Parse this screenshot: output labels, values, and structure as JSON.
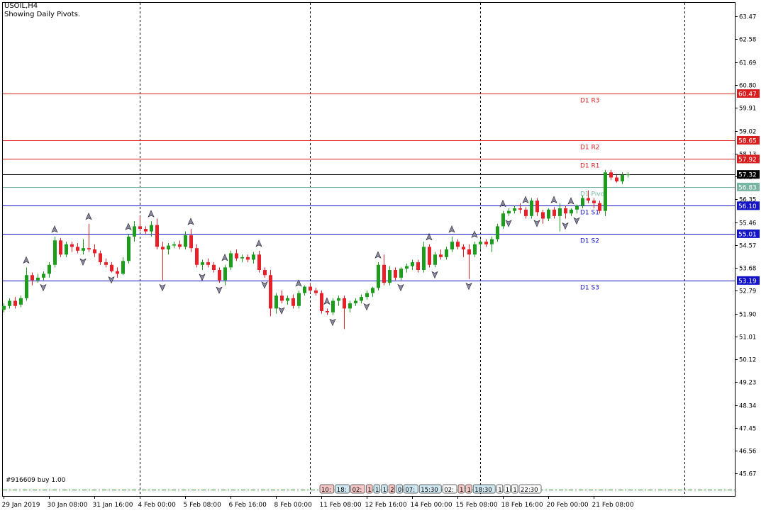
{
  "header": {
    "symbol_timeframe": "USOIL,H4",
    "indicator_note": "Showing Daily Pivots."
  },
  "order_note": "#916609 buy 1.00",
  "colors": {
    "bull": "#1e9c1e",
    "bear": "#e8202a",
    "resistance": "#d81e1e",
    "support": "#1515c8",
    "pivot": "#78b4a4",
    "current": "#000000",
    "grid": "#000000"
  },
  "chart_data": {
    "type": "candlestick",
    "title": "USOIL,H4",
    "subtitle": "Showing Daily Pivots.",
    "ylim": [
      44.8,
      64.0
    ],
    "y_ticks": [
      "63.47",
      "62.58",
      "61.69",
      "60.80",
      "59.91",
      "59.02",
      "58.13",
      "57.24",
      "56.35",
      "55.46",
      "54.57",
      "53.68",
      "52.79",
      "51.90",
      "51.01",
      "50.12",
      "49.23",
      "48.34",
      "47.45",
      "46.56",
      "45.67"
    ],
    "x_ticks": [
      "29 Jan 2019",
      "30 Jan 08:00",
      "31 Jan 16:00",
      "4 Feb 00:00",
      "5 Feb 08:00",
      "6 Feb 16:00",
      "8 Feb 00:00",
      "11 Feb 08:00",
      "12 Feb 16:00",
      "14 Feb 00:00",
      "15 Feb 08:00",
      "18 Feb 16:00",
      "20 Feb 00:00",
      "21 Feb 08:00"
    ],
    "x_tick_bar_index": [
      0,
      8,
      16,
      24,
      32,
      40,
      48,
      56,
      64,
      72,
      80,
      88,
      96,
      104
    ],
    "period_separators_bar_index": [
      24,
      54,
      84,
      120
    ],
    "pivot_levels": [
      {
        "name": "D1 R3",
        "value": 60.47,
        "label": "60.47",
        "kind": "resistance"
      },
      {
        "name": "D1 R2",
        "value": 58.65,
        "label": "58.65",
        "kind": "resistance"
      },
      {
        "name": "D1 R1",
        "value": 57.92,
        "label": "57.92",
        "kind": "resistance"
      },
      {
        "name": "D1 Pivot",
        "value": 56.83,
        "label": "56.83",
        "kind": "pivot"
      },
      {
        "name": "D1 S1",
        "value": 56.1,
        "label": "56.10",
        "kind": "support"
      },
      {
        "name": "D1 S2",
        "value": 55.01,
        "label": "55.01",
        "kind": "support"
      },
      {
        "name": "D1 S3",
        "value": 53.19,
        "label": "53.19",
        "kind": "support"
      }
    ],
    "current_price": {
      "value": 57.32,
      "label": "57.32"
    },
    "candles": [
      [
        52.05,
        52.3,
        51.95,
        52.2
      ],
      [
        52.2,
        52.5,
        52.1,
        52.4
      ],
      [
        52.4,
        52.55,
        52.1,
        52.2
      ],
      [
        52.25,
        52.6,
        52.15,
        52.5
      ],
      [
        52.5,
        53.7,
        52.4,
        53.4
      ],
      [
        53.4,
        53.5,
        53.0,
        53.2
      ],
      [
        53.2,
        53.45,
        53.1,
        53.3
      ],
      [
        53.3,
        53.55,
        53.2,
        53.45
      ],
      [
        53.45,
        53.9,
        53.3,
        53.8
      ],
      [
        53.8,
        54.9,
        53.7,
        54.75
      ],
      [
        54.75,
        54.85,
        54.1,
        54.2
      ],
      [
        54.2,
        54.7,
        54.1,
        54.6
      ],
      [
        54.6,
        54.7,
        54.3,
        54.5
      ],
      [
        54.5,
        54.65,
        54.25,
        54.35
      ],
      [
        54.35,
        54.8,
        54.2,
        54.45
      ],
      [
        54.45,
        55.4,
        54.3,
        54.4
      ],
      [
        54.4,
        54.6,
        54.1,
        54.25
      ],
      [
        54.25,
        54.35,
        53.8,
        53.9
      ],
      [
        53.9,
        54.05,
        53.7,
        53.8
      ],
      [
        53.8,
        53.9,
        53.5,
        53.55
      ],
      [
        53.55,
        53.7,
        53.3,
        53.45
      ],
      [
        53.45,
        54.1,
        53.4,
        53.95
      ],
      [
        53.95,
        55.0,
        53.85,
        54.9
      ],
      [
        54.9,
        55.5,
        54.7,
        55.3
      ],
      [
        55.3,
        55.7,
        55.1,
        55.2
      ],
      [
        55.2,
        55.3,
        55.0,
        55.1
      ],
      [
        55.1,
        55.5,
        54.9,
        55.35
      ],
      [
        55.35,
        55.6,
        54.4,
        54.5
      ],
      [
        54.5,
        54.7,
        53.2,
        54.4
      ],
      [
        54.4,
        54.65,
        54.2,
        54.55
      ],
      [
        54.55,
        54.7,
        54.45,
        54.6
      ],
      [
        54.6,
        54.75,
        54.4,
        54.5
      ],
      [
        54.5,
        55.1,
        54.4,
        54.95
      ],
      [
        54.95,
        55.2,
        54.3,
        54.45
      ],
      [
        54.45,
        54.6,
        53.7,
        53.8
      ],
      [
        53.8,
        54.0,
        53.6,
        53.9
      ],
      [
        53.9,
        54.05,
        53.7,
        53.8
      ],
      [
        53.8,
        53.9,
        53.5,
        53.6
      ],
      [
        53.6,
        53.7,
        53.1,
        53.2
      ],
      [
        53.2,
        53.8,
        53.0,
        53.7
      ],
      [
        53.7,
        54.35,
        53.6,
        54.25
      ],
      [
        54.25,
        54.4,
        53.95,
        54.05
      ],
      [
        54.05,
        54.2,
        53.9,
        54.1
      ],
      [
        54.1,
        54.2,
        53.9,
        54.0
      ],
      [
        54.0,
        54.3,
        53.85,
        54.2
      ],
      [
        54.2,
        54.35,
        53.5,
        53.6
      ],
      [
        53.6,
        53.7,
        53.3,
        53.4
      ],
      [
        53.4,
        53.6,
        51.8,
        52.1
      ],
      [
        52.1,
        52.7,
        51.9,
        52.6
      ],
      [
        52.6,
        52.8,
        52.3,
        52.4
      ],
      [
        52.4,
        52.6,
        52.25,
        52.5
      ],
      [
        52.5,
        52.65,
        52.1,
        52.2
      ],
      [
        52.2,
        52.8,
        52.1,
        52.7
      ],
      [
        52.7,
        53.0,
        52.6,
        52.95
      ],
      [
        52.95,
        53.1,
        52.7,
        52.8
      ],
      [
        52.8,
        52.9,
        52.6,
        52.7
      ],
      [
        52.7,
        52.8,
        51.9,
        52.0
      ],
      [
        52.0,
        52.1,
        51.85,
        51.95
      ],
      [
        51.95,
        52.5,
        51.85,
        52.4
      ],
      [
        52.4,
        52.6,
        52.2,
        52.5
      ],
      [
        52.5,
        52.6,
        51.3,
        52.1
      ],
      [
        52.1,
        52.4,
        51.95,
        52.3
      ],
      [
        52.3,
        52.5,
        52.2,
        52.4
      ],
      [
        52.4,
        52.65,
        52.3,
        52.55
      ],
      [
        52.55,
        52.8,
        52.45,
        52.7
      ],
      [
        52.7,
        52.95,
        52.55,
        52.9
      ],
      [
        52.9,
        53.9,
        52.8,
        53.8
      ],
      [
        53.8,
        54.2,
        53.0,
        53.1
      ],
      [
        53.1,
        53.75,
        53.0,
        53.6
      ],
      [
        53.6,
        53.7,
        53.2,
        53.3
      ],
      [
        53.3,
        53.7,
        53.2,
        53.65
      ],
      [
        53.65,
        53.85,
        53.5,
        53.75
      ],
      [
        53.75,
        54.0,
        53.6,
        53.9
      ],
      [
        53.9,
        54.0,
        53.5,
        53.6
      ],
      [
        53.6,
        54.7,
        53.5,
        54.5
      ],
      [
        54.5,
        54.6,
        53.7,
        53.8
      ],
      [
        53.8,
        54.3,
        53.7,
        54.2
      ],
      [
        54.2,
        54.4,
        54.0,
        54.1
      ],
      [
        54.1,
        54.5,
        54.0,
        54.4
      ],
      [
        54.4,
        54.9,
        54.3,
        54.7
      ],
      [
        54.7,
        54.8,
        54.4,
        54.5
      ],
      [
        54.5,
        54.6,
        54.1,
        54.4
      ],
      [
        54.4,
        54.6,
        53.25,
        54.2
      ],
      [
        54.2,
        54.7,
        54.1,
        54.6
      ],
      [
        54.6,
        54.8,
        54.4,
        54.7
      ],
      [
        54.7,
        54.8,
        54.5,
        54.6
      ],
      [
        54.6,
        54.9,
        54.3,
        54.8
      ],
      [
        54.8,
        55.4,
        54.7,
        55.3
      ],
      [
        55.3,
        55.9,
        55.2,
        55.8
      ],
      [
        55.8,
        56.0,
        55.7,
        55.9
      ],
      [
        55.9,
        56.1,
        55.8,
        56.0
      ],
      [
        56.0,
        56.2,
        55.8,
        55.95
      ],
      [
        55.95,
        56.05,
        55.6,
        55.7
      ],
      [
        55.7,
        56.4,
        55.6,
        56.3
      ],
      [
        56.3,
        56.4,
        55.7,
        55.85
      ],
      [
        55.85,
        55.95,
        55.4,
        55.6
      ],
      [
        55.6,
        56.0,
        55.5,
        55.95
      ],
      [
        55.95,
        56.05,
        55.6,
        55.7
      ],
      [
        55.7,
        56.2,
        55.1,
        56.0
      ],
      [
        56.0,
        56.1,
        55.6,
        55.8
      ],
      [
        55.8,
        56.0,
        55.7,
        55.95
      ],
      [
        55.95,
        56.15,
        55.8,
        56.1
      ],
      [
        56.1,
        56.5,
        56.0,
        56.4
      ],
      [
        56.4,
        56.7,
        56.2,
        56.3
      ],
      [
        56.3,
        56.4,
        56.0,
        56.2
      ],
      [
        56.2,
        56.3,
        55.8,
        55.9
      ],
      [
        55.9,
        57.5,
        55.7,
        57.4
      ],
      [
        57.4,
        57.5,
        57.1,
        57.2
      ],
      [
        57.2,
        57.3,
        57.0,
        57.05
      ],
      [
        57.05,
        57.4,
        56.95,
        57.3
      ],
      [
        57.3,
        57.4,
        57.2,
        57.32
      ]
    ],
    "fractals_up": [
      4,
      9,
      15,
      22,
      26,
      33,
      39,
      45,
      52,
      57,
      66,
      75,
      79,
      83,
      88,
      92,
      97,
      100
    ],
    "fractals_down": [
      7,
      14,
      19,
      28,
      35,
      38,
      46,
      49,
      58,
      64,
      70,
      76,
      82,
      89,
      94,
      99,
      101
    ],
    "order_level": 45.05,
    "session_boxes": [
      "10:",
      "18:",
      "02:",
      "1",
      "1",
      "1",
      "2",
      "0",
      "07:",
      "15:30",
      "02:",
      "1",
      "1",
      "18:30",
      "1",
      "1",
      "1",
      "22:30"
    ]
  }
}
